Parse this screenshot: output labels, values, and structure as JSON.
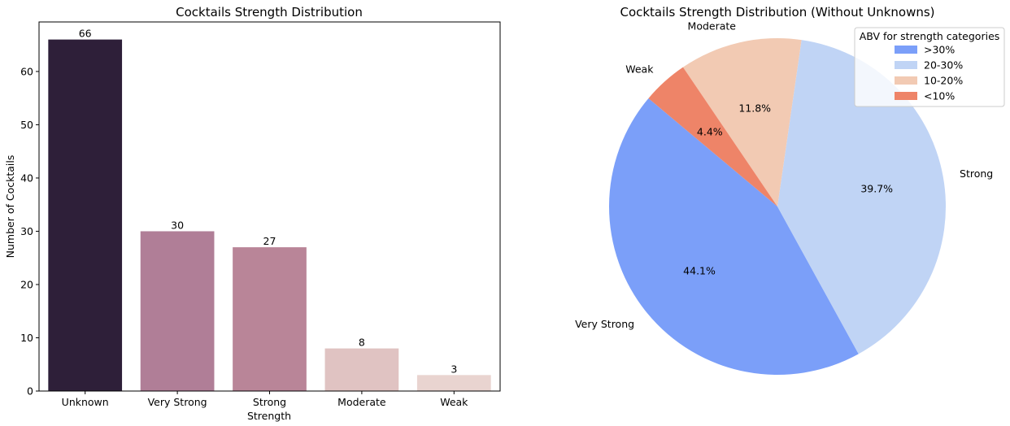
{
  "chart_data": [
    {
      "type": "bar",
      "title": "Cocktails Strength Distribution",
      "xlabel": "Strength",
      "ylabel": "Number of Cocktails",
      "categories": [
        "Unknown",
        "Very Strong",
        "Strong",
        "Moderate",
        "Weak"
      ],
      "values": [
        66,
        30,
        27,
        8,
        3
      ],
      "data_labels": [
        "66",
        "30",
        "27",
        "8",
        "3"
      ],
      "colors": [
        "#2e1f39",
        "#b07e97",
        "#b98598",
        "#e0c3c2",
        "#e9d4d0"
      ],
      "ylim": [
        0,
        69.3
      ],
      "yticks": [
        0,
        10,
        20,
        30,
        40,
        50,
        60
      ],
      "grid": false
    },
    {
      "type": "pie",
      "title": "Cocktails Strength Distribution (Without Unknowns)",
      "labels": [
        "Very Strong",
        "Strong",
        "Moderate",
        "Weak"
      ],
      "values": [
        30,
        27,
        8,
        3
      ],
      "percent_labels": [
        "44.1%",
        "39.7%",
        "11.8%",
        "4.4%"
      ],
      "colors": [
        "#7b9ff9",
        "#c0d4f5",
        "#f2cab3",
        "#ee8468"
      ],
      "legend": {
        "title": "ABV for strength categories",
        "placement": "top-right",
        "entries": [
          {
            "label": ">30%",
            "color": "#7b9ff9"
          },
          {
            "label": "20-30%",
            "color": "#c0d4f5"
          },
          {
            "label": "10-20%",
            "color": "#f2cab3"
          },
          {
            "label": "<10%",
            "color": "#ee8468"
          }
        ]
      }
    }
  ]
}
